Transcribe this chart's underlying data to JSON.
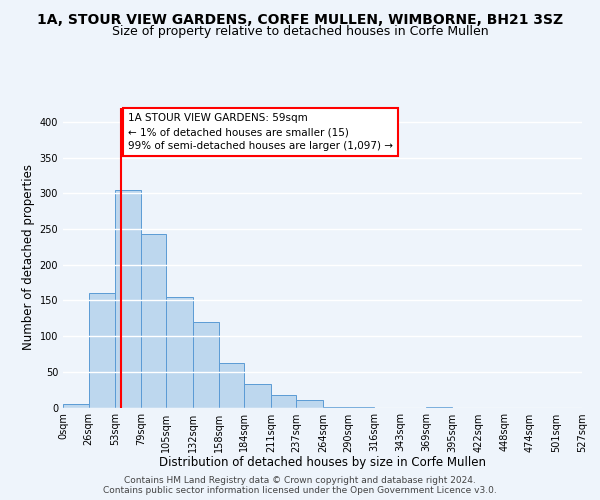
{
  "title": "1A, STOUR VIEW GARDENS, CORFE MULLEN, WIMBORNE, BH21 3SZ",
  "subtitle": "Size of property relative to detached houses in Corfe Mullen",
  "xlabel": "Distribution of detached houses by size in Corfe Mullen",
  "ylabel": "Number of detached properties",
  "bin_labels": [
    "0sqm",
    "26sqm",
    "53sqm",
    "79sqm",
    "105sqm",
    "132sqm",
    "158sqm",
    "184sqm",
    "211sqm",
    "237sqm",
    "264sqm",
    "290sqm",
    "316sqm",
    "343sqm",
    "369sqm",
    "395sqm",
    "422sqm",
    "448sqm",
    "474sqm",
    "501sqm",
    "527sqm"
  ],
  "bin_edges": [
    0,
    26,
    53,
    79,
    105,
    132,
    158,
    184,
    211,
    237,
    264,
    290,
    316,
    343,
    369,
    395,
    422,
    448,
    474,
    501,
    527
  ],
  "bar_values": [
    5,
    160,
    305,
    243,
    155,
    120,
    63,
    33,
    18,
    10,
    1,
    1,
    0,
    0,
    1,
    0,
    0,
    0,
    0,
    0
  ],
  "bar_color": "#BDD7EE",
  "bar_edge_color": "#5B9BD5",
  "vline_x": 59,
  "vline_color": "#FF0000",
  "ylim": [
    0,
    420
  ],
  "yticks": [
    0,
    50,
    100,
    150,
    200,
    250,
    300,
    350,
    400
  ],
  "annotation_text": "1A STOUR VIEW GARDENS: 59sqm\n← 1% of detached houses are smaller (15)\n99% of semi-detached houses are larger (1,097) →",
  "annotation_box_color": "#FF0000",
  "footer_line1": "Contains HM Land Registry data © Crown copyright and database right 2024.",
  "footer_line2": "Contains public sector information licensed under the Open Government Licence v3.0.",
  "bg_color": "#EEF4FB",
  "grid_color": "#FFFFFF",
  "title_fontsize": 10,
  "subtitle_fontsize": 9,
  "axis_label_fontsize": 8.5,
  "tick_fontsize": 7,
  "annotation_fontsize": 7.5,
  "footer_fontsize": 6.5
}
